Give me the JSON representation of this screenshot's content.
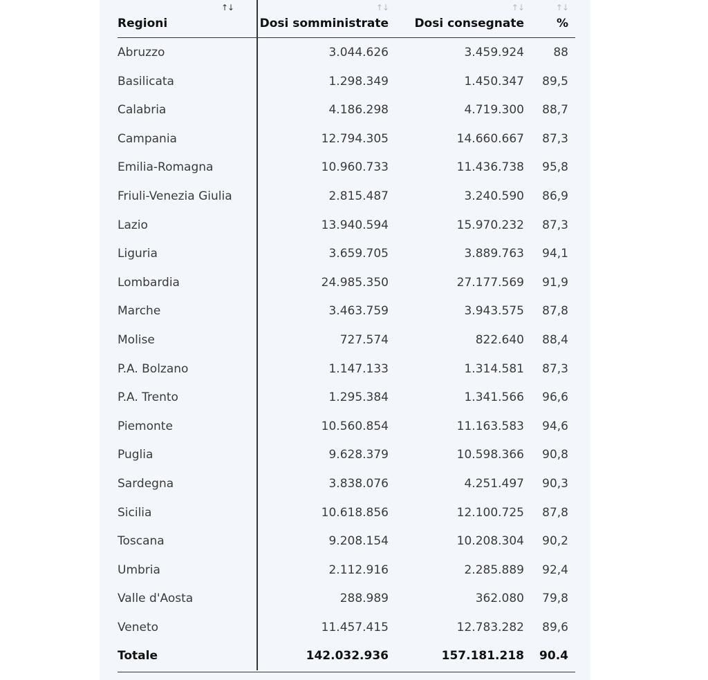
{
  "table": {
    "headers": {
      "region": "Regioni",
      "dosi_somministrate": "Dosi somministrate",
      "dosi_consegnate": "Dosi consegnate",
      "percent": "%"
    },
    "sort_icon": "↑↓",
    "active_sort_column": "region",
    "rows": [
      {
        "region": "Abruzzo",
        "dosi_somministrate": "3.044.626",
        "dosi_consegnate": "3.459.924",
        "percent": "88"
      },
      {
        "region": "Basilicata",
        "dosi_somministrate": "1.298.349",
        "dosi_consegnate": "1.450.347",
        "percent": "89,5"
      },
      {
        "region": "Calabria",
        "dosi_somministrate": "4.186.298",
        "dosi_consegnate": "4.719.300",
        "percent": "88,7"
      },
      {
        "region": "Campania",
        "dosi_somministrate": "12.794.305",
        "dosi_consegnate": "14.660.667",
        "percent": "87,3"
      },
      {
        "region": "Emilia-Romagna",
        "dosi_somministrate": "10.960.733",
        "dosi_consegnate": "11.436.738",
        "percent": "95,8"
      },
      {
        "region": "Friuli-Venezia Giulia",
        "dosi_somministrate": "2.815.487",
        "dosi_consegnate": "3.240.590",
        "percent": "86,9"
      },
      {
        "region": "Lazio",
        "dosi_somministrate": "13.940.594",
        "dosi_consegnate": "15.970.232",
        "percent": "87,3"
      },
      {
        "region": "Liguria",
        "dosi_somministrate": "3.659.705",
        "dosi_consegnate": "3.889.763",
        "percent": "94,1"
      },
      {
        "region": "Lombardia",
        "dosi_somministrate": "24.985.350",
        "dosi_consegnate": "27.177.569",
        "percent": "91,9"
      },
      {
        "region": "Marche",
        "dosi_somministrate": "3.463.759",
        "dosi_consegnate": "3.943.575",
        "percent": "87,8"
      },
      {
        "region": "Molise",
        "dosi_somministrate": "727.574",
        "dosi_consegnate": "822.640",
        "percent": "88,4"
      },
      {
        "region": "P.A. Bolzano",
        "dosi_somministrate": "1.147.133",
        "dosi_consegnate": "1.314.581",
        "percent": "87,3"
      },
      {
        "region": "P.A. Trento",
        "dosi_somministrate": "1.295.384",
        "dosi_consegnate": "1.341.566",
        "percent": "96,6"
      },
      {
        "region": "Piemonte",
        "dosi_somministrate": "10.560.854",
        "dosi_consegnate": "11.163.583",
        "percent": "94,6"
      },
      {
        "region": "Puglia",
        "dosi_somministrate": "9.628.379",
        "dosi_consegnate": "10.598.366",
        "percent": "90,8"
      },
      {
        "region": "Sardegna",
        "dosi_somministrate": "3.838.076",
        "dosi_consegnate": "4.251.497",
        "percent": "90,3"
      },
      {
        "region": "Sicilia",
        "dosi_somministrate": "10.618.856",
        "dosi_consegnate": "12.100.725",
        "percent": "87,8"
      },
      {
        "region": "Toscana",
        "dosi_somministrate": "9.208.154",
        "dosi_consegnate": "10.208.304",
        "percent": "90,2"
      },
      {
        "region": "Umbria",
        "dosi_somministrate": "2.112.916",
        "dosi_consegnate": "2.285.889",
        "percent": "92,4"
      },
      {
        "region": "Valle d'Aosta",
        "dosi_somministrate": "288.989",
        "dosi_consegnate": "362.080",
        "percent": "79,8"
      },
      {
        "region": "Veneto",
        "dosi_somministrate": "11.457.415",
        "dosi_consegnate": "12.783.282",
        "percent": "89,6"
      }
    ],
    "total": {
      "region": "Totale",
      "dosi_somministrate": "142.032.936",
      "dosi_consegnate": "157.181.218",
      "percent": "90.4"
    }
  }
}
